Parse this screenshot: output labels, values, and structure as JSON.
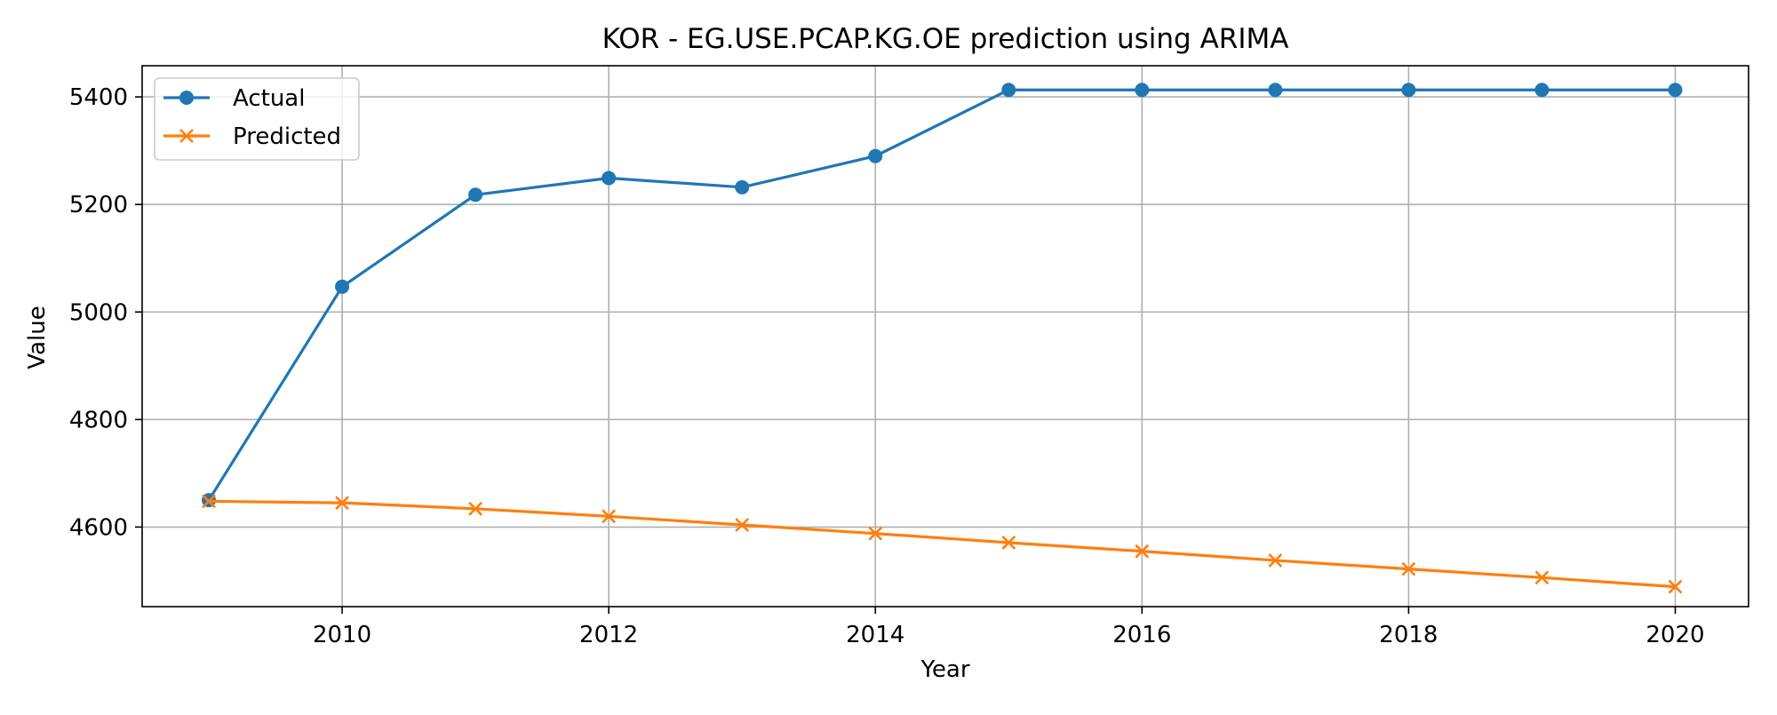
{
  "chart_data": {
    "type": "line",
    "title": "KOR - EG.USE.PCAP.KG.OE prediction using ARIMA",
    "xlabel": "Year",
    "ylabel": "Value",
    "x": [
      2009,
      2010,
      2011,
      2012,
      2013,
      2014,
      2015,
      2016,
      2017,
      2018,
      2019,
      2020
    ],
    "series": [
      {
        "name": "Actual",
        "color": "#1f77b4",
        "marker": "circle",
        "values": [
          4650,
          5047,
          5218,
          5249,
          5232,
          5290,
          5413,
          5413,
          5413,
          5413,
          5413,
          5413
        ]
      },
      {
        "name": "Predicted",
        "color": "#ff7f0e",
        "marker": "x",
        "values": [
          4648,
          4645,
          4634,
          4620,
          4604,
          4588,
          4571,
          4555,
          4538,
          4522,
          4506,
          4489
        ]
      }
    ],
    "xlim": [
      2008.5,
      2020.55
    ],
    "ylim": [
      4452,
      5458
    ],
    "xticks": [
      2010,
      2012,
      2014,
      2016,
      2018,
      2020
    ],
    "yticks": [
      4600,
      4800,
      5000,
      5200,
      5400
    ],
    "grid": true,
    "legend_position": "top-left"
  }
}
